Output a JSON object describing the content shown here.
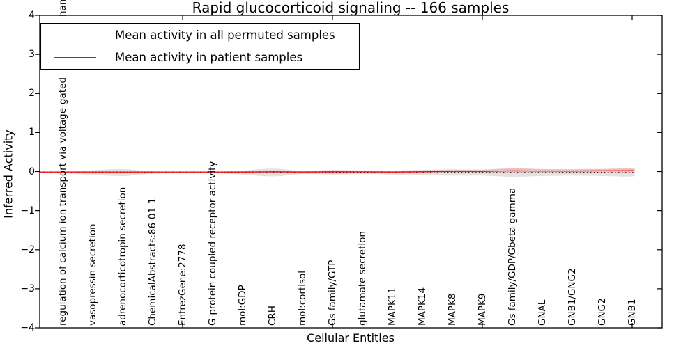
{
  "figure": {
    "title": "Rapid glucocorticoid signaling -- 166 samples",
    "ylabel": "Inferred Activity",
    "xlabel": "Cellular Entities",
    "clipped_label_fragment": "hann"
  },
  "legend": {
    "items": [
      {
        "label": "Mean activity in all permuted samples",
        "color": "#000000",
        "style": "solid"
      },
      {
        "label": "Mean activity in patient samples",
        "color": "#ff0000",
        "style": "solid"
      }
    ]
  },
  "chart_data": {
    "type": "line",
    "title": "Rapid glucocorticoid signaling -- 166 samples",
    "xlabel": "Cellular Entities",
    "ylabel": "Inferred Activity",
    "ylim": [
      -4,
      4
    ],
    "yticks": [
      4,
      3,
      2,
      1,
      0,
      -1,
      -2,
      -3,
      -4
    ],
    "x_tick_values": [
      5,
      10,
      15,
      20
    ],
    "grid": false,
    "legend_position": "upper left",
    "categories": [
      "regulation of calcium ion transport via voltage-gated",
      "vasopressin secretion",
      "adrenocorticotropin secretion",
      "ChemicalAbstracts:86-01-1",
      "EntrezGene:2778",
      "G-protein coupled receptor activity",
      "mol:GDP",
      "CRH",
      "mol:cortisol",
      "Gs family/GTP",
      "glutamate secretion",
      "MAPK11",
      "MAPK14",
      "MAPK8",
      "MAPK9",
      "Gs family/GDP/Gbeta gamma",
      "GNAL",
      "GNB1/GNG2",
      "GNG2",
      "GNB1"
    ],
    "x_positions": [
      1,
      2,
      3,
      4,
      5,
      6,
      7,
      8,
      9,
      10,
      11,
      12,
      13,
      14,
      15,
      16,
      17,
      18,
      19,
      20
    ],
    "series": [
      {
        "name": "Mean activity in all permuted samples",
        "color": "#000000",
        "line_style": "dotted",
        "values": [
          -0.025,
          -0.025,
          -0.025,
          -0.025,
          -0.025,
          -0.025,
          -0.025,
          -0.025,
          -0.025,
          -0.025,
          -0.025,
          -0.025,
          -0.025,
          -0.025,
          -0.025,
          -0.025,
          -0.025,
          -0.025,
          -0.025,
          -0.025
        ]
      },
      {
        "name": "Mean activity in patient samples",
        "color": "#ff0000",
        "line_style": "solid",
        "values": [
          -0.01,
          -0.01,
          -0.01,
          -0.01,
          -0.01,
          -0.01,
          -0.01,
          -0.005,
          -0.01,
          -0.005,
          -0.008,
          -0.01,
          -0.005,
          0.005,
          0.005,
          0.02,
          0.015,
          0.015,
          0.02,
          0.025
        ]
      }
    ],
    "bands": [
      {
        "name": "permuted samples activity range",
        "color": "rgba(125,125,125,0.22)",
        "center_series": 0,
        "halfwidths": [
          0.02,
          0.06,
          0.09,
          0.03,
          0.02,
          0.02,
          0.05,
          0.1,
          0.04,
          0.05,
          0.04,
          0.05,
          0.07,
          0.08,
          0.08,
          0.11,
          0.09,
          0.08,
          0.09,
          0.1
        ]
      },
      {
        "name": "patient samples activity range",
        "color": "rgba(255,0,0,0.14)",
        "center_series": 1,
        "halfwidths": [
          0.01,
          0.01,
          0.01,
          0.01,
          0.01,
          0.01,
          0.015,
          0.03,
          0.02,
          0.05,
          0.035,
          0.02,
          0.03,
          0.04,
          0.04,
          0.06,
          0.05,
          0.05,
          0.05,
          0.06
        ]
      }
    ]
  }
}
